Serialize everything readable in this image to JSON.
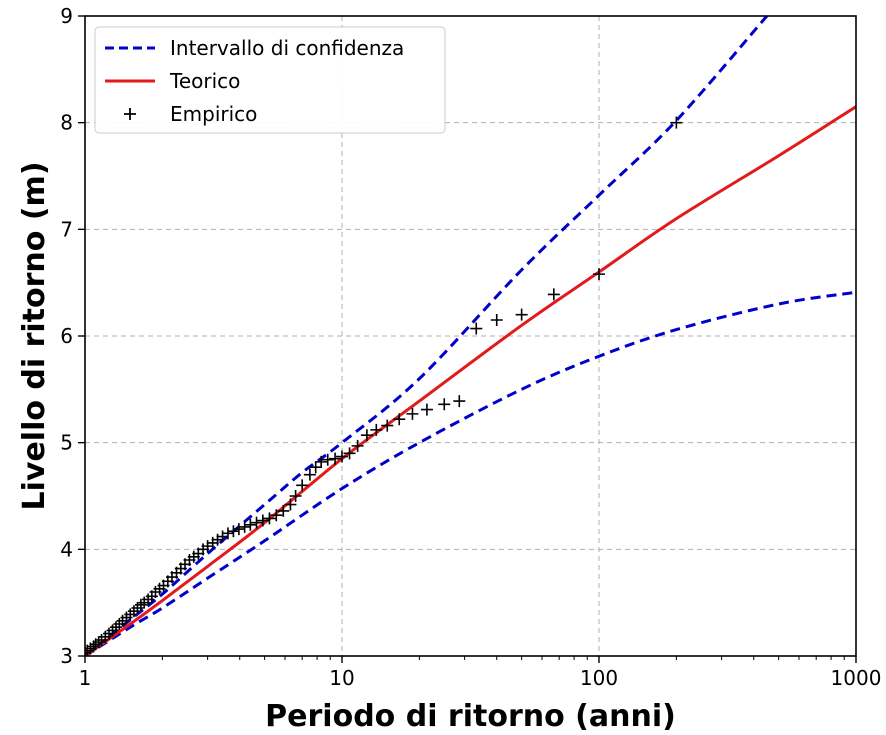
{
  "chart_data": {
    "type": "line",
    "xlabel": "Periodo di ritorno (anni)",
    "ylabel": "Livello di ritorno (m)",
    "xscale": "log",
    "xlim": [
      1,
      1000
    ],
    "ylim": [
      3,
      9
    ],
    "x_ticks": [
      "1",
      "10",
      "100",
      "1000"
    ],
    "y_ticks": [
      "3",
      "4",
      "5",
      "6",
      "7",
      "8",
      "9"
    ],
    "grid": true,
    "legend_position": "top-left",
    "legend": [
      "Intervallo di confidenza",
      "Teorico",
      "Empirico"
    ],
    "colors": {
      "confidence": "#0000cc",
      "theoretical": "#e31a1c",
      "empirical": "#000000"
    },
    "series": [
      {
        "name": "Intervallo di confidenza",
        "style": "dashed",
        "x": [
          1,
          1.5,
          2,
          3,
          5,
          7,
          10,
          20,
          50,
          100,
          200,
          450
        ],
        "y": [
          3.0,
          3.34,
          3.58,
          3.96,
          4.42,
          4.72,
          5.0,
          5.6,
          6.62,
          7.32,
          8.02,
          9.0
        ]
      },
      {
        "name": "Intervallo di confidenza (inferiore)",
        "style": "dashed",
        "x": [
          1,
          1.5,
          2,
          3,
          5,
          10,
          20,
          50,
          100,
          200,
          500,
          1000
        ],
        "y": [
          3.0,
          3.27,
          3.45,
          3.73,
          4.08,
          4.57,
          5.0,
          5.5,
          5.81,
          6.06,
          6.3,
          6.41
        ]
      },
      {
        "name": "Teorico",
        "style": "solid",
        "x": [
          1,
          1.5,
          2,
          3,
          5,
          10,
          20,
          50,
          100,
          200,
          500,
          1000
        ],
        "y": [
          3.0,
          3.3,
          3.52,
          3.84,
          4.25,
          4.85,
          5.39,
          6.1,
          6.6,
          7.1,
          7.69,
          8.15
        ]
      },
      {
        "name": "Empirico",
        "style": "marker-plus",
        "x": [
          1.0,
          1.02,
          1.05,
          1.08,
          1.1,
          1.13,
          1.16,
          1.2,
          1.24,
          1.28,
          1.32,
          1.36,
          1.4,
          1.45,
          1.5,
          1.55,
          1.6,
          1.65,
          1.7,
          1.76,
          1.82,
          1.88,
          1.95,
          2.02,
          2.1,
          2.18,
          2.27,
          2.36,
          2.45,
          2.55,
          2.65,
          2.76,
          2.88,
          3.0,
          3.14,
          3.28,
          3.43,
          3.6,
          3.78,
          3.97,
          4.18,
          4.4,
          4.65,
          4.92,
          5.22,
          5.55,
          5.91,
          6.3,
          6.6,
          7.0,
          7.5,
          7.9,
          8.3,
          8.8,
          9.4,
          10.0,
          10.7,
          11.5,
          12.5,
          13.6,
          15.0,
          16.7,
          18.8,
          21.4,
          25.0,
          28.6,
          33.3,
          40.0,
          50.0,
          66.7,
          100.0,
          200.0
        ],
        "y": [
          3.03,
          3.05,
          3.07,
          3.09,
          3.11,
          3.13,
          3.15,
          3.18,
          3.21,
          3.24,
          3.27,
          3.3,
          3.33,
          3.36,
          3.39,
          3.42,
          3.45,
          3.48,
          3.5,
          3.53,
          3.56,
          3.6,
          3.63,
          3.66,
          3.7,
          3.74,
          3.78,
          3.82,
          3.86,
          3.9,
          3.93,
          3.96,
          4.0,
          4.03,
          4.06,
          4.09,
          4.12,
          4.15,
          4.17,
          4.19,
          4.21,
          4.23,
          4.25,
          4.27,
          4.29,
          4.32,
          4.36,
          4.42,
          4.5,
          4.6,
          4.7,
          4.77,
          4.82,
          4.84,
          4.85,
          4.87,
          4.9,
          4.97,
          5.07,
          5.12,
          5.16,
          5.22,
          5.27,
          5.31,
          5.36,
          5.39,
          6.07,
          6.15,
          6.2,
          6.39,
          6.58,
          8.0
        ]
      }
    ]
  }
}
